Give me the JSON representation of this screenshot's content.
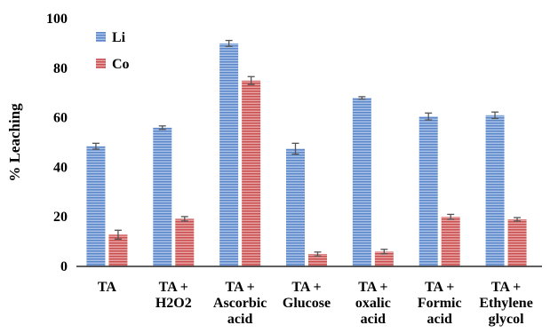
{
  "chart_data": {
    "type": "bar",
    "title": "",
    "xlabel": "",
    "ylabel": "% Leaching",
    "ylim": [
      0,
      100
    ],
    "yticks": [
      0,
      20,
      40,
      60,
      80,
      100
    ],
    "grid": false,
    "legend_position": "top-left",
    "categories": [
      [
        "TA"
      ],
      [
        "TA +",
        "H2O2"
      ],
      [
        "TA +",
        "Ascorbic",
        "acid"
      ],
      [
        "TA +",
        "Glucose"
      ],
      [
        "TA +",
        "oxalic",
        "acid"
      ],
      [
        "TA +",
        "Formic",
        "acid"
      ],
      [
        "TA +",
        "Ethylene",
        "glycol"
      ]
    ],
    "series": [
      {
        "name": "Li",
        "color": "#5b86c8",
        "stripe": "#a9c2ea",
        "values": [
          48.5,
          56,
          90,
          47.5,
          68,
          60.5,
          61
        ],
        "errors": [
          1.2,
          0.7,
          1.2,
          2.2,
          0.5,
          1.4,
          1.3
        ]
      },
      {
        "name": "Co",
        "color": "#c84f4f",
        "stripe": "#eaa3a3",
        "values": [
          12.8,
          19.2,
          75,
          5,
          6,
          20,
          19
        ],
        "errors": [
          1.8,
          0.9,
          1.6,
          0.8,
          0.9,
          1.0,
          0.7
        ]
      }
    ]
  }
}
